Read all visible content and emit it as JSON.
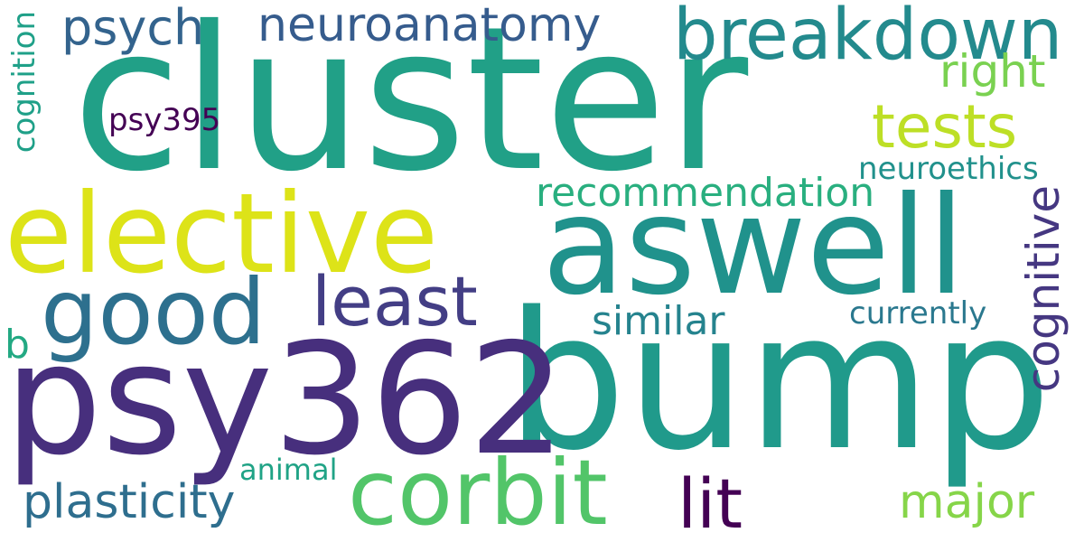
{
  "words": {
    "cluster": {
      "text": "cluster",
      "color": "#21a087"
    },
    "bump": {
      "text": "bump",
      "color": "#209a8b"
    },
    "psy362": {
      "text": "psy362",
      "color": "#472f7d"
    },
    "aswell": {
      "text": "aswell",
      "color": "#20928c"
    },
    "elective": {
      "text": "elective",
      "color": "#dde318"
    },
    "good": {
      "text": "good",
      "color": "#2d708e"
    },
    "corbit": {
      "text": "corbit",
      "color": "#52c569"
    },
    "breakdown": {
      "text": "breakdown",
      "color": "#238a8d"
    },
    "least": {
      "text": "least",
      "color": "#433e85"
    },
    "lit": {
      "text": "lit",
      "color": "#440154"
    },
    "tests": {
      "text": "tests",
      "color": "#bddf26"
    },
    "psych": {
      "text": "psych",
      "color": "#33638d"
    },
    "neuroanatomy": {
      "text": "neuroanatomy",
      "color": "#365c8d"
    },
    "plasticity": {
      "text": "plasticity",
      "color": "#2e6e8e"
    },
    "major": {
      "text": "major",
      "color": "#86d549"
    },
    "right": {
      "text": "right",
      "color": "#7ad151"
    },
    "cognitive": {
      "text": "cognitive",
      "color": "#453781"
    },
    "recommendation": {
      "text": "recommendation",
      "color": "#29af7f"
    },
    "similar": {
      "text": "similar",
      "color": "#25838e"
    },
    "b": {
      "text": "b",
      "color": "#23a983"
    },
    "psy395": {
      "text": "psy395",
      "color": "#440154"
    },
    "neuroethics": {
      "text": "neuroethics",
      "color": "#21918c"
    },
    "currently": {
      "text": "currently",
      "color": "#2a788e"
    },
    "cognition": {
      "text": "cognition",
      "color": "#1fa088"
    },
    "animal": {
      "text": "animal",
      "color": "#20a386"
    }
  }
}
